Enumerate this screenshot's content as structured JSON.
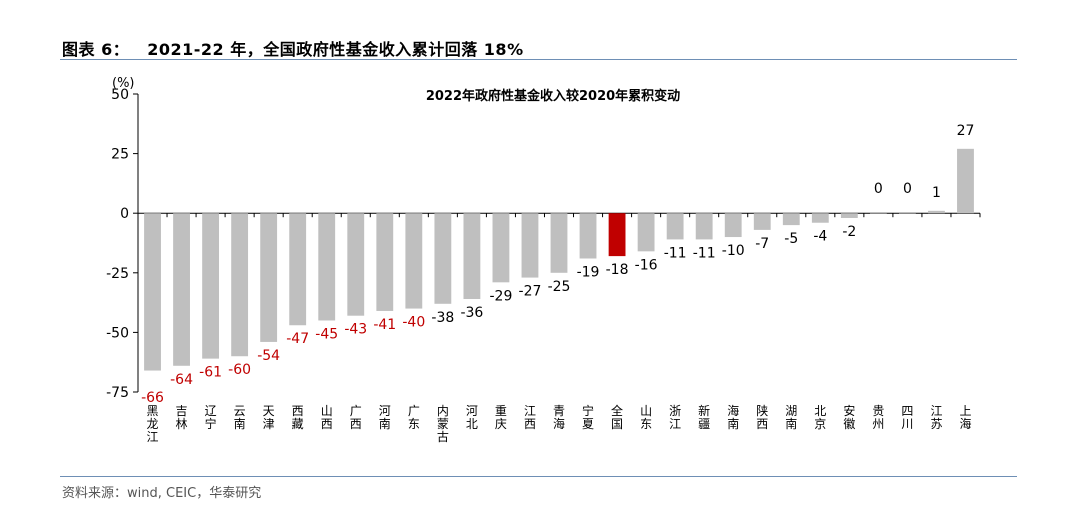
{
  "figure": {
    "label": "图表 6：",
    "title": "2021-22 年，全国政府性基金收入累计回落 18%"
  },
  "source": "资料来源：wind, CEIC，华泰研究",
  "colors": {
    "bar_default": "#bfbfbf",
    "bar_highlight": "#c00000",
    "label_highlight": "#c00000",
    "label_default": "#000000",
    "rule": "#6e8fb5"
  },
  "chart_data": {
    "type": "bar",
    "title": "2022年政府性基金收入较2020年累积变动",
    "ylabel": "(%)",
    "xlabel": "",
    "ylim": [
      -75,
      50
    ],
    "yticks": [
      50,
      25,
      0,
      -25,
      -50,
      -75
    ],
    "grid": false,
    "categories": [
      "黑龙江",
      "吉林",
      "辽宁",
      "云南",
      "天津",
      "西藏",
      "山西",
      "广西",
      "河南",
      "广东",
      "内蒙古",
      "河北",
      "重庆",
      "江西",
      "青海",
      "宁夏",
      "全国",
      "山东",
      "浙江",
      "新疆",
      "海南",
      "陕西",
      "湖南",
      "北京",
      "安徽",
      "贵州",
      "四川",
      "江苏",
      "上海"
    ],
    "values": [
      -66,
      -64,
      -61,
      -60,
      -54,
      -47,
      -45,
      -43,
      -41,
      -40,
      -38,
      -36,
      -29,
      -27,
      -25,
      -19,
      -18,
      -16,
      -11,
      -11,
      -10,
      -7,
      -5,
      -4,
      -2,
      0,
      0,
      1,
      27
    ],
    "highlight_category": "全国",
    "red_label_categories": [
      "黑龙江",
      "吉林",
      "辽宁",
      "云南",
      "天津",
      "西藏",
      "山西",
      "广西",
      "河南",
      "广东"
    ]
  }
}
